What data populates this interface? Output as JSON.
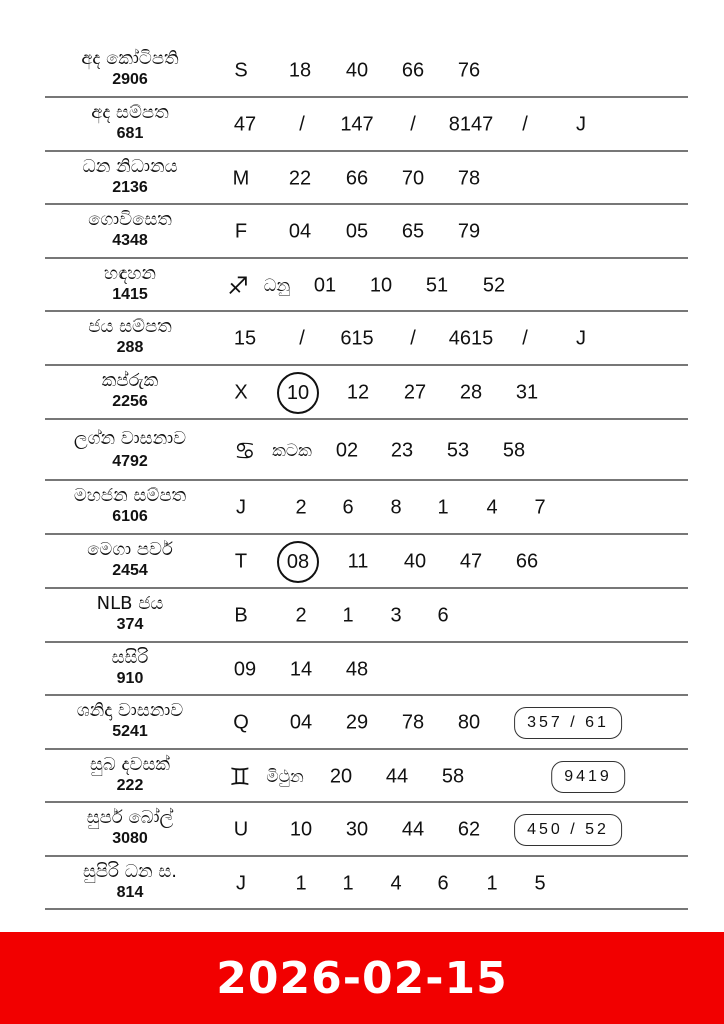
{
  "results": [
    {
      "name": "අද කෝටිපති",
      "draw": "2906",
      "tokens": [
        {
          "t": "S"
        },
        {
          "t": "18"
        },
        {
          "t": "40"
        },
        {
          "t": "66"
        },
        {
          "t": "76"
        }
      ]
    },
    {
      "name": "අද සම්පත",
      "draw": "681",
      "tokens": [
        {
          "t": "47"
        },
        {
          "t": "/"
        },
        {
          "t": "147"
        },
        {
          "t": "/"
        },
        {
          "t": "8147"
        },
        {
          "t": "/"
        },
        {
          "t": "J"
        }
      ]
    },
    {
      "name": "ධන නිධානය",
      "draw": "2136",
      "tokens": [
        {
          "t": "M"
        },
        {
          "t": "22"
        },
        {
          "t": "66"
        },
        {
          "t": "70"
        },
        {
          "t": "78"
        }
      ]
    },
    {
      "name": "ගොවිසෙත",
      "draw": "4348",
      "tokens": [
        {
          "t": "F"
        },
        {
          "t": "04"
        },
        {
          "t": "05"
        },
        {
          "t": "65"
        },
        {
          "t": "79"
        }
      ]
    },
    {
      "name": "හඳහන",
      "draw": "1415",
      "tokens": [
        {
          "t": "sagittarius-icon",
          "kind": "icon"
        },
        {
          "t": "ධනු",
          "kind": "zodiac"
        },
        {
          "t": "01"
        },
        {
          "t": "10"
        },
        {
          "t": "51"
        },
        {
          "t": "52"
        }
      ]
    },
    {
      "name": "ජය සම්පත",
      "draw": "288",
      "tokens": [
        {
          "t": "15"
        },
        {
          "t": "/"
        },
        {
          "t": "615"
        },
        {
          "t": "/"
        },
        {
          "t": "4615"
        },
        {
          "t": "/"
        },
        {
          "t": "J"
        }
      ]
    },
    {
      "name": "කප්රුක",
      "draw": "2256",
      "tokens": [
        {
          "t": "X"
        },
        {
          "t": "10",
          "kind": "circle"
        },
        {
          "t": "12"
        },
        {
          "t": "27"
        },
        {
          "t": "28"
        },
        {
          "t": "31"
        }
      ]
    },
    {
      "name": "ලග්න වාසනාව",
      "draw": "4792",
      "tokens": [
        {
          "t": "cancer-icon",
          "kind": "icon"
        },
        {
          "t": "කටක",
          "kind": "zodiac"
        },
        {
          "t": "02"
        },
        {
          "t": "23"
        },
        {
          "t": "53"
        },
        {
          "t": "58"
        }
      ]
    },
    {
      "name": "මහජන සම්පත",
      "draw": "6106",
      "tokens": [
        {
          "t": "J"
        },
        {
          "t": "2"
        },
        {
          "t": "6"
        },
        {
          "t": "8"
        },
        {
          "t": "1"
        },
        {
          "t": "4"
        },
        {
          "t": "7"
        }
      ]
    },
    {
      "name": "මෙගා පවර්",
      "draw": "2454",
      "tokens": [
        {
          "t": "T"
        },
        {
          "t": "08",
          "kind": "circle"
        },
        {
          "t": "11"
        },
        {
          "t": "40"
        },
        {
          "t": "47"
        },
        {
          "t": "66"
        }
      ]
    },
    {
      "name": "NLB ජය",
      "draw": "374",
      "tokens": [
        {
          "t": "B"
        },
        {
          "t": "2"
        },
        {
          "t": "1"
        },
        {
          "t": "3"
        },
        {
          "t": "6"
        }
      ]
    },
    {
      "name": "සසිරි",
      "draw": "910",
      "tokens": [
        {
          "t": "09"
        },
        {
          "t": "14"
        },
        {
          "t": "48"
        }
      ]
    },
    {
      "name": "ශනිදා වාසනාව",
      "draw": "5241",
      "tokens": [
        {
          "t": "Q"
        },
        {
          "t": "04"
        },
        {
          "t": "29"
        },
        {
          "t": "78"
        },
        {
          "t": "80"
        },
        {
          "t": "357 / 61",
          "kind": "box"
        }
      ]
    },
    {
      "name": "සුබ දවසක්",
      "draw": "222",
      "tokens": [
        {
          "t": "gemini-icon",
          "kind": "icon"
        },
        {
          "t": "මිථුන",
          "kind": "zodiac"
        },
        {
          "t": "20"
        },
        {
          "t": "44"
        },
        {
          "t": "58"
        },
        {
          "t": "9419",
          "kind": "box"
        }
      ]
    },
    {
      "name": "සුපර් බෝල්",
      "draw": "3080",
      "tokens": [
        {
          "t": "U"
        },
        {
          "t": "10"
        },
        {
          "t": "30"
        },
        {
          "t": "44"
        },
        {
          "t": "62"
        },
        {
          "t": "450 / 52",
          "kind": "box"
        }
      ]
    },
    {
      "name": "සුපිරි ධන ස.",
      "draw": "814",
      "tokens": [
        {
          "t": "J"
        },
        {
          "t": "1"
        },
        {
          "t": "1"
        },
        {
          "t": "4"
        },
        {
          "t": "6"
        },
        {
          "t": "1"
        },
        {
          "t": "5"
        }
      ]
    }
  ],
  "footer": {
    "date": "2026-02-15",
    "background": "#f20000"
  }
}
